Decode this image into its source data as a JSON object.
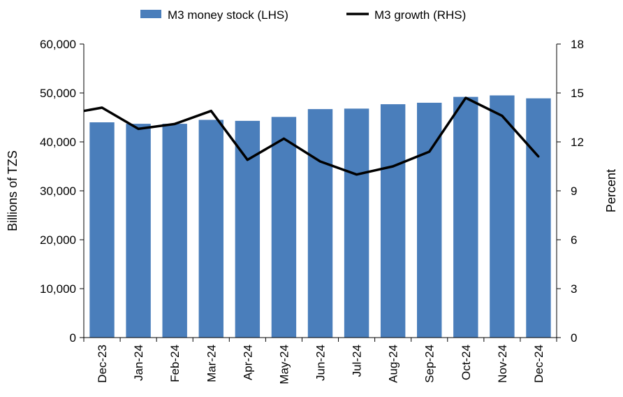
{
  "chart_data": {
    "type": "bar+line",
    "title": "",
    "categories": [
      "Dec-23",
      "Jan-24",
      "Feb-24",
      "Mar-24",
      "Apr-24",
      "May-24",
      "Jun-24",
      "Jul-24",
      "Aug-24",
      "Sep-24",
      "Oct-24",
      "Nov-24",
      "Dec-24"
    ],
    "series": [
      {
        "name": "M3 money stock (LHS)",
        "type": "bar",
        "axis": "left",
        "color": "#4a7ebb",
        "values": [
          44000,
          43700,
          43700,
          44500,
          44300,
          45100,
          46700,
          46800,
          47700,
          48000,
          49200,
          49500,
          48900
        ]
      },
      {
        "name": "M3 growth (RHS)",
        "type": "line",
        "axis": "right",
        "color": "#000000",
        "values": [
          14.1,
          12.8,
          13.1,
          13.9,
          10.9,
          12.2,
          10.8,
          10.0,
          10.5,
          11.4,
          14.7,
          13.6,
          11.1
        ],
        "start_value": 13.9
      }
    ],
    "ylabel_left": "Billions of TZS",
    "ylabel_right": "Percent",
    "ylim_left": [
      0,
      60000
    ],
    "ylim_right": [
      0,
      18
    ],
    "yticks_left": [
      "0",
      "10,000",
      "20,000",
      "30,000",
      "40,000",
      "50,000",
      "60,000"
    ],
    "yticks_right": [
      "0",
      "3",
      "6",
      "9",
      "12",
      "15",
      "18"
    ],
    "grid": false,
    "legend": "top"
  }
}
